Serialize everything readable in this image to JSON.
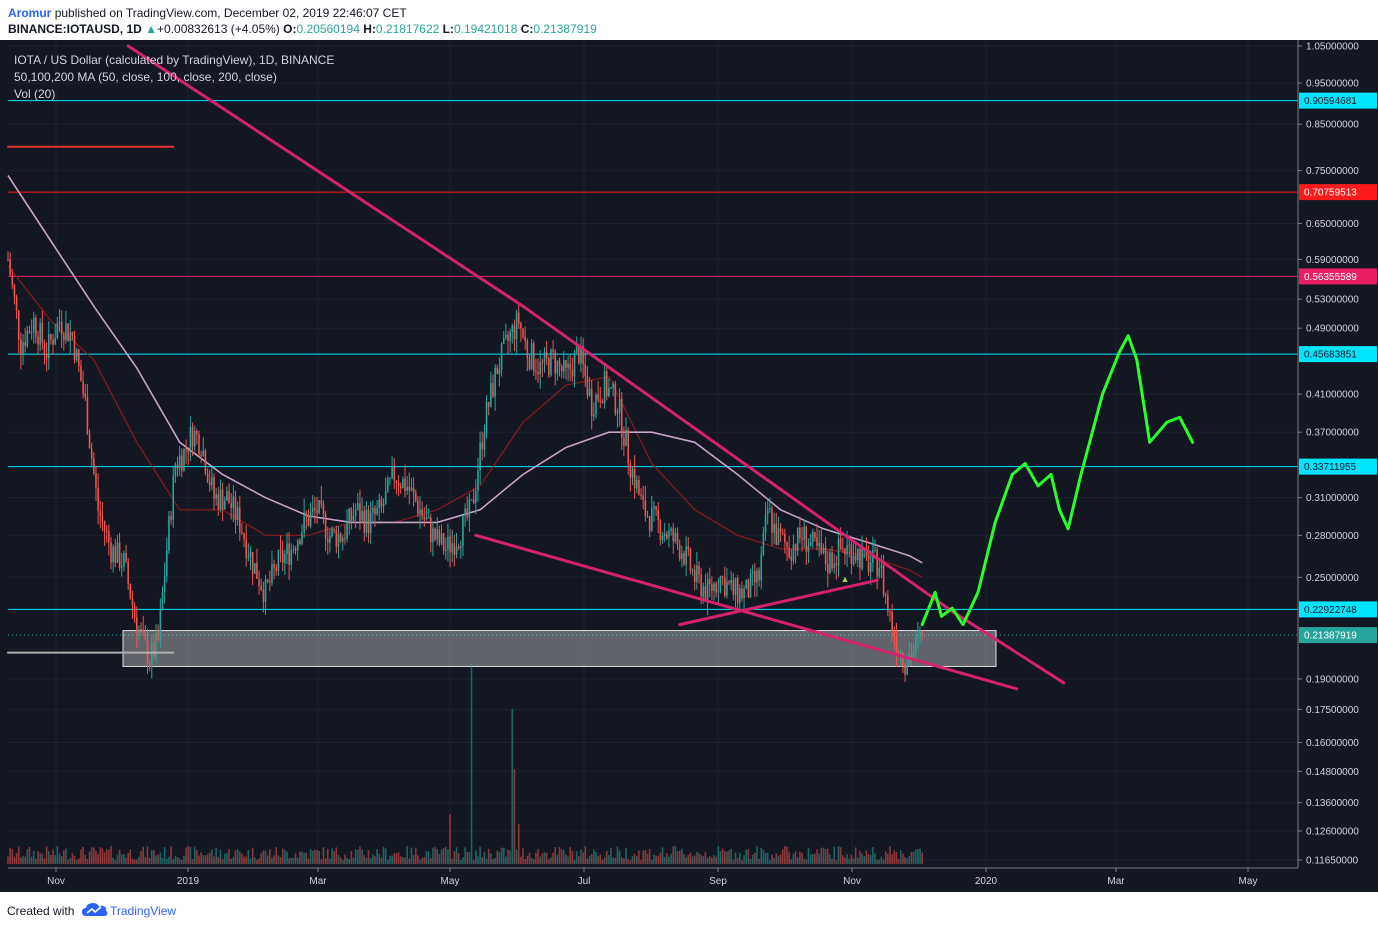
{
  "header": {
    "author": "Aromur",
    "published": "published on TradingView.com, December 02, 2019 22:46:07 CET",
    "symbol": "BINANCE:IOTAUSD, 1D",
    "change_arrow": "▲",
    "change": "+0.00832613 (+4.05%)",
    "o_label": "O:",
    "o_value": "0.20560194",
    "h_label": "H:",
    "h_value": "0.21817622",
    "l_label": "L:",
    "l_value": "0.19421018",
    "c_label": "C:",
    "c_value": "0.21387919"
  },
  "legend": {
    "title": "IOTA / US Dollar (calculated by TradingView), 1D, BINANCE",
    "ma": "50,100,200 MA (50, close, 100, close, 200, close)",
    "vol": "Vol (20)"
  },
  "footer": {
    "created": "Created with",
    "brand": "TradingView",
    "logo_icon": "tradingview-cloud-icon"
  },
  "chart_data": {
    "type": "candlestick",
    "scale": "log",
    "colors": {
      "background": "#131722",
      "up": "#26a69a",
      "down": "#ef5350",
      "trendline": "#d4226b",
      "projection": "#2bff2b",
      "cyan_level": "#00e5ff",
      "red_level": "#ff1a1a",
      "pink_level": "#e91e63",
      "ma50": "#8b1a1a",
      "ma100": "#c8a2c8",
      "support_zone": "#ffffff"
    },
    "x_ticks": [
      "Nov",
      "2019",
      "Mar",
      "May",
      "Jul",
      "Sep",
      "Nov",
      "2020",
      "Mar",
      "May"
    ],
    "y_ticks": [
      "1.05000000",
      "0.95000000",
      "0.85000000",
      "0.75000000",
      "0.65000000",
      "0.59000000",
      "0.53000000",
      "0.49000000",
      "0.41000000",
      "0.37000000",
      "0.31000000",
      "0.28000000",
      "0.25000000",
      "0.19000000",
      "0.17500000",
      "0.16000000",
      "0.14800000",
      "0.13600000",
      "0.12600000",
      "0.11650000"
    ],
    "ylim": [
      0.1165,
      1.05
    ],
    "horizontal_levels": [
      {
        "value": 0.90594681,
        "label": "0.90594681",
        "color": "#00e5ff"
      },
      {
        "value": 0.70759513,
        "label": "0.70759513",
        "color": "#ff1a1a"
      },
      {
        "value": 0.56355589,
        "label": "0.56355589",
        "color": "#e91e63"
      },
      {
        "value": 0.45683851,
        "label": "0.45683851",
        "color": "#00e5ff"
      },
      {
        "value": 0.33711955,
        "label": "0.33711955",
        "color": "#00e5ff"
      },
      {
        "value": 0.22922748,
        "label": "0.22922748",
        "color": "#00e5ff"
      }
    ],
    "last_price": {
      "value": 0.21387919,
      "label": "0.21387919",
      "color": "#26a69a"
    },
    "support_zone": [
      0.1965,
      0.2165
    ],
    "price_path": [
      [
        0,
        0.59
      ],
      [
        6,
        0.47
      ],
      [
        12,
        0.5
      ],
      [
        18,
        0.46
      ],
      [
        24,
        0.5
      ],
      [
        30,
        0.48
      ],
      [
        36,
        0.4
      ],
      [
        42,
        0.3
      ],
      [
        48,
        0.27
      ],
      [
        54,
        0.26
      ],
      [
        60,
        0.22
      ],
      [
        66,
        0.2
      ],
      [
        70,
        0.21
      ],
      [
        74,
        0.27
      ],
      [
        78,
        0.34
      ],
      [
        82,
        0.35
      ],
      [
        86,
        0.37
      ],
      [
        90,
        0.36
      ],
      [
        96,
        0.31
      ],
      [
        102,
        0.31
      ],
      [
        108,
        0.29
      ],
      [
        114,
        0.26
      ],
      [
        120,
        0.24
      ],
      [
        126,
        0.26
      ],
      [
        132,
        0.27
      ],
      [
        138,
        0.29
      ],
      [
        144,
        0.3
      ],
      [
        150,
        0.28
      ],
      [
        156,
        0.28
      ],
      [
        162,
        0.3
      ],
      [
        168,
        0.29
      ],
      [
        174,
        0.3
      ],
      [
        180,
        0.33
      ],
      [
        186,
        0.32
      ],
      [
        192,
        0.3
      ],
      [
        198,
        0.28
      ],
      [
        204,
        0.27
      ],
      [
        210,
        0.28
      ],
      [
        216,
        0.3
      ],
      [
        222,
        0.38
      ],
      [
        228,
        0.44
      ],
      [
        234,
        0.48
      ],
      [
        238,
        0.5
      ],
      [
        242,
        0.46
      ],
      [
        248,
        0.44
      ],
      [
        254,
        0.45
      ],
      [
        260,
        0.43
      ],
      [
        266,
        0.46
      ],
      [
        272,
        0.4
      ],
      [
        278,
        0.42
      ],
      [
        284,
        0.4
      ],
      [
        290,
        0.34
      ],
      [
        296,
        0.3
      ],
      [
        302,
        0.29
      ],
      [
        308,
        0.28
      ],
      [
        314,
        0.27
      ],
      [
        320,
        0.25
      ],
      [
        326,
        0.24
      ],
      [
        332,
        0.25
      ],
      [
        338,
        0.24
      ],
      [
        344,
        0.24
      ],
      [
        350,
        0.25
      ],
      [
        354,
        0.3
      ],
      [
        358,
        0.28
      ],
      [
        364,
        0.27
      ],
      [
        370,
        0.28
      ],
      [
        376,
        0.27
      ],
      [
        382,
        0.26
      ],
      [
        388,
        0.27
      ],
      [
        394,
        0.27
      ],
      [
        400,
        0.26
      ],
      [
        406,
        0.26
      ],
      [
        410,
        0.23
      ],
      [
        414,
        0.21
      ],
      [
        418,
        0.2
      ],
      [
        422,
        0.205
      ],
      [
        426,
        0.214
      ]
    ],
    "ma50": [
      [
        0,
        0.58
      ],
      [
        20,
        0.5
      ],
      [
        40,
        0.45
      ],
      [
        60,
        0.36
      ],
      [
        80,
        0.3
      ],
      [
        100,
        0.3
      ],
      [
        120,
        0.28
      ],
      [
        140,
        0.28
      ],
      [
        160,
        0.29
      ],
      [
        180,
        0.29
      ],
      [
        200,
        0.3
      ],
      [
        220,
        0.32
      ],
      [
        240,
        0.38
      ],
      [
        260,
        0.42
      ],
      [
        280,
        0.43
      ],
      [
        300,
        0.34
      ],
      [
        320,
        0.3
      ],
      [
        340,
        0.28
      ],
      [
        360,
        0.27
      ],
      [
        380,
        0.27
      ],
      [
        400,
        0.265
      ],
      [
        420,
        0.255
      ],
      [
        426,
        0.25
      ]
    ],
    "ma100": [
      [
        0,
        0.74
      ],
      [
        20,
        0.62
      ],
      [
        40,
        0.52
      ],
      [
        60,
        0.44
      ],
      [
        80,
        0.36
      ],
      [
        100,
        0.33
      ],
      [
        120,
        0.31
      ],
      [
        140,
        0.295
      ],
      [
        160,
        0.29
      ],
      [
        180,
        0.29
      ],
      [
        200,
        0.29
      ],
      [
        220,
        0.3
      ],
      [
        240,
        0.33
      ],
      [
        260,
        0.355
      ],
      [
        280,
        0.37
      ],
      [
        300,
        0.37
      ],
      [
        320,
        0.36
      ],
      [
        340,
        0.33
      ],
      [
        360,
        0.3
      ],
      [
        380,
        0.285
      ],
      [
        400,
        0.275
      ],
      [
        420,
        0.265
      ],
      [
        426,
        0.26
      ]
    ],
    "trendlines": [
      {
        "name": "descending-resistance",
        "points": [
          [
            56,
            1.05
          ],
          [
            240,
            0.52
          ],
          [
            440,
            0.228
          ],
          [
            492,
            0.188
          ]
        ]
      },
      {
        "name": "lower-wedge-support",
        "points": [
          [
            218,
            0.28
          ],
          [
            470,
            0.185
          ]
        ]
      },
      {
        "name": "rising-support",
        "points": [
          [
            313,
            0.22
          ],
          [
            405,
            0.248
          ]
        ]
      },
      {
        "name": "previous-top-marker",
        "points": [
          [
            0,
            0.8
          ],
          [
            77,
            0.8
          ]
        ]
      },
      {
        "name": "previous-low-marker",
        "points": [
          [
            0,
            0.204
          ],
          [
            77,
            0.204
          ]
        ]
      }
    ],
    "projection_path": [
      [
        426,
        0.22
      ],
      [
        432,
        0.24
      ],
      [
        435,
        0.225
      ],
      [
        440,
        0.23
      ],
      [
        445,
        0.22
      ],
      [
        452,
        0.24
      ],
      [
        460,
        0.29
      ],
      [
        468,
        0.33
      ],
      [
        474,
        0.34
      ],
      [
        480,
        0.32
      ],
      [
        486,
        0.33
      ],
      [
        490,
        0.3
      ],
      [
        494,
        0.285
      ],
      [
        500,
        0.33
      ],
      [
        510,
        0.41
      ],
      [
        518,
        0.46
      ],
      [
        522,
        0.48
      ],
      [
        526,
        0.45
      ],
      [
        532,
        0.36
      ],
      [
        540,
        0.38
      ],
      [
        546,
        0.385
      ],
      [
        552,
        0.36
      ]
    ],
    "annotation_label": "▲",
    "legend_placement": "top-left"
  }
}
